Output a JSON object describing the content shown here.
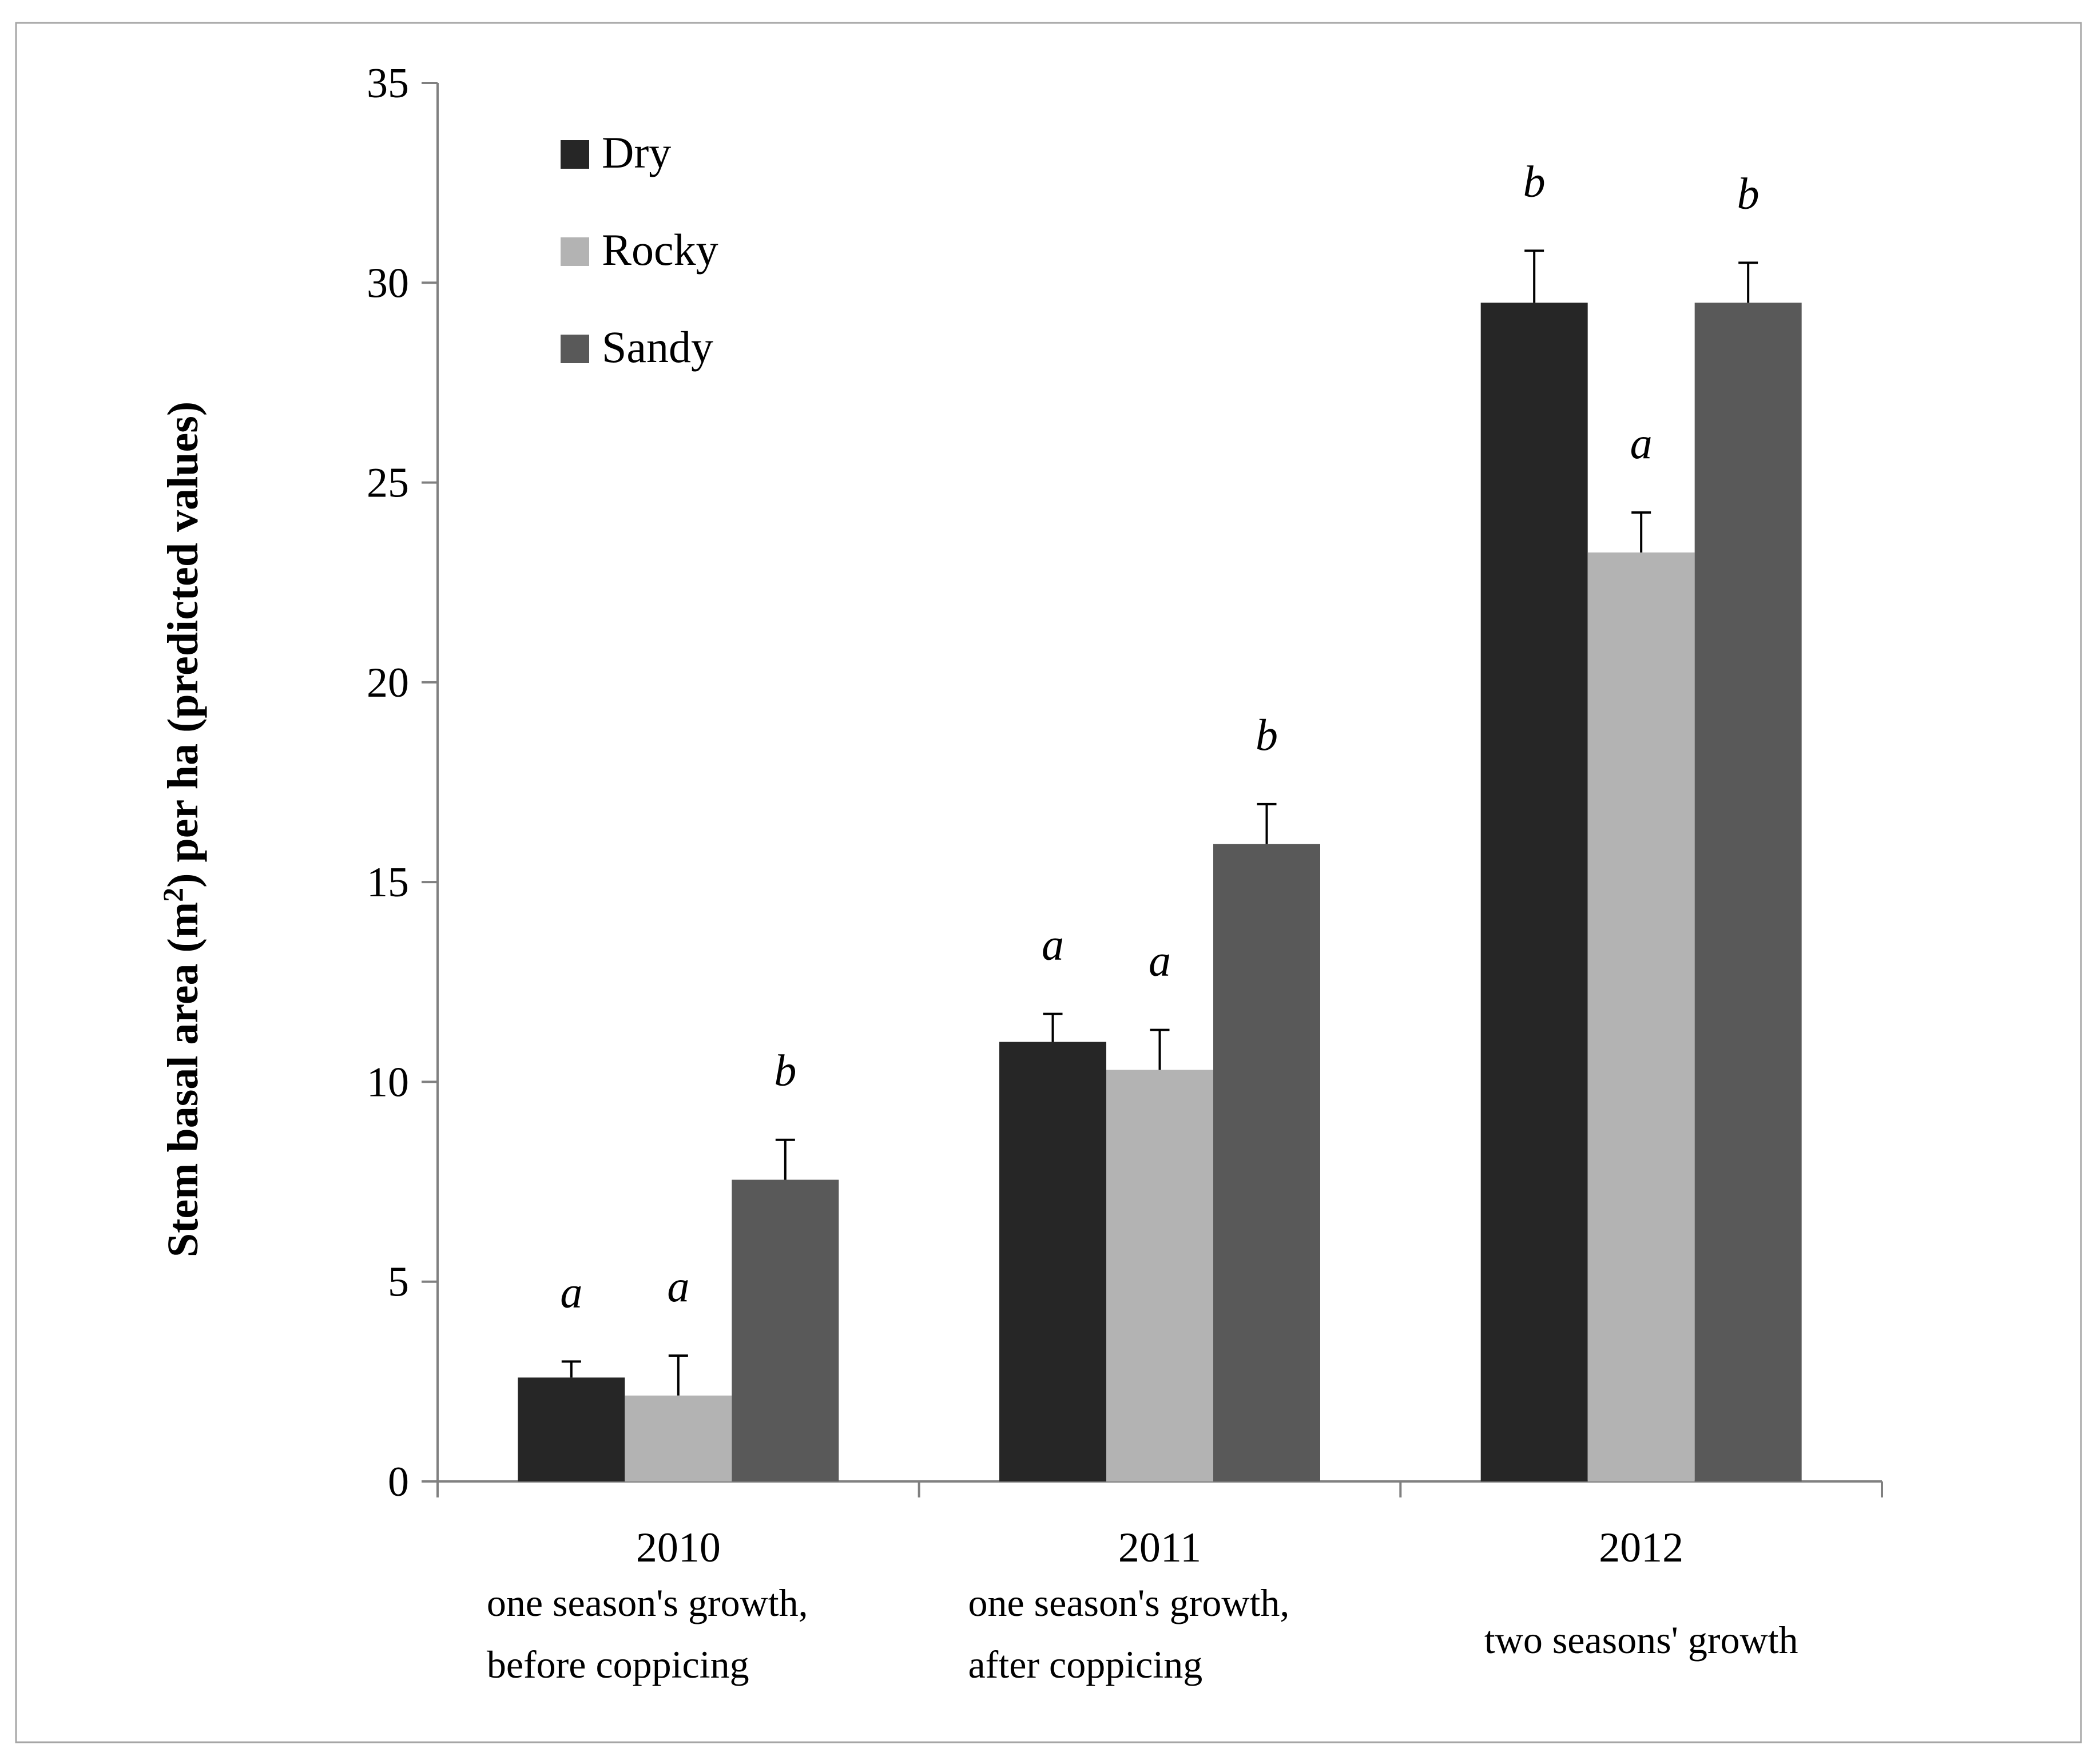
{
  "chart_data": {
    "type": "bar",
    "title": "",
    "xlabel": "",
    "ylabel": "Stem basal area (m²) per ha (predicted values)",
    "ylabel_parts": {
      "before": "Stem basal area (m",
      "sup": "2",
      "after": ") per ha (predicted values)"
    },
    "ylim": [
      0,
      35
    ],
    "yticks": [
      "0",
      "5",
      "10",
      "15",
      "20",
      "25",
      "30",
      "35"
    ],
    "ytick_values": [
      0,
      5,
      10,
      15,
      20,
      25,
      30,
      35
    ],
    "grid": false,
    "legend_position": "top-left",
    "categories": [
      "2010",
      "2011",
      "2012"
    ],
    "category_sublabels": [
      [
        "one season's growth,",
        "before coppicing"
      ],
      [
        "one season's growth,",
        "after coppicing"
      ],
      [
        "two seasons' growth"
      ]
    ],
    "series": [
      {
        "name": "Dry",
        "color": "#262626",
        "values": [
          2.6,
          11.0,
          29.5
        ],
        "errors": [
          0.4,
          0.7,
          1.3
        ],
        "significance": [
          "a",
          "a",
          "b"
        ]
      },
      {
        "name": "Rocky",
        "color": "#b3b3b3",
        "values": [
          2.15,
          10.3,
          23.25
        ],
        "errors": [
          1.0,
          1.0,
          1.0
        ],
        "significance": [
          "a",
          "a",
          "a"
        ]
      },
      {
        "name": "Sandy",
        "color": "#595959",
        "values": [
          7.55,
          15.95,
          29.5
        ],
        "errors": [
          1.0,
          1.0,
          1.0
        ],
        "significance": [
          "b",
          "b",
          "b"
        ]
      }
    ]
  }
}
